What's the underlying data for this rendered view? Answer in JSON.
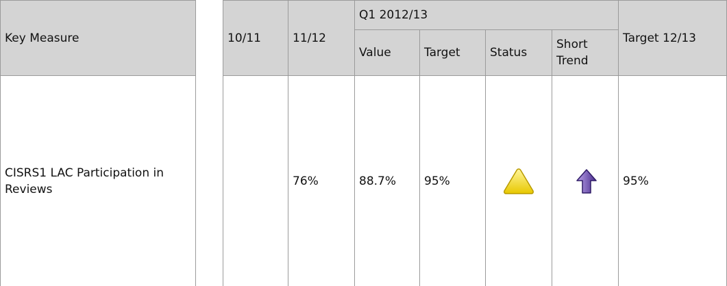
{
  "left_table": {
    "header": "Key Measure",
    "row": {
      "measure": "CISRS1 LAC Participation in Reviews"
    }
  },
  "right_table": {
    "headers": [
      "10/11",
      "11/12"
    ],
    "group": {
      "title": "Q1 2012/13",
      "columns": [
        "Value",
        "Target",
        "Status",
        "Short Trend"
      ]
    },
    "last_header": "Target 12/13",
    "row": {
      "y1112": "76%",
      "value": "88.7%",
      "target": "95%",
      "target_1213": "95%"
    }
  }
}
